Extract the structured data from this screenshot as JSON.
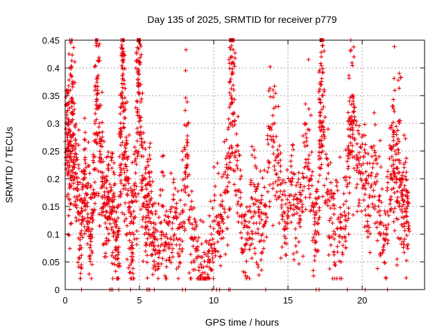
{
  "chart_data": {
    "type": "scatter",
    "title": "Day 135 of 2025, SRMTID for receiver p779",
    "xlabel": "GPS time / hours",
    "ylabel": "SRMTID / TECUs",
    "xlim": [
      0,
      24.2
    ],
    "ylim": [
      0,
      0.45
    ],
    "xticks": [
      0,
      5,
      10,
      15,
      20
    ],
    "yticks": [
      0,
      0.05,
      0.1,
      0.15,
      0.2,
      0.25,
      0.3,
      0.35,
      0.4,
      0.45
    ],
    "ytick_labels": [
      "0",
      "0.05",
      "0.1",
      "0.15",
      "0.2",
      "0.25",
      "0.3",
      "0.35",
      "0.4",
      "0.45"
    ],
    "grid": true,
    "marker": "+",
    "series_color": "#e8000b",
    "series": [
      {
        "name": "SRMTID",
        "points": [
          [
            0.05,
            0.29
          ],
          [
            0.1,
            0.32
          ],
          [
            0.15,
            0.27
          ],
          [
            0.2,
            0.3
          ],
          [
            0.25,
            0.22
          ],
          [
            0.3,
            0.19
          ],
          [
            0.35,
            0.36
          ],
          [
            0.4,
            0.34
          ],
          [
            0.45,
            0.33
          ],
          [
            0.5,
            0.28
          ],
          [
            0.55,
            0.26
          ],
          [
            0.6,
            0.24
          ],
          [
            0.7,
            0.21
          ],
          [
            0.8,
            0.18
          ],
          [
            0.9,
            0.14
          ],
          [
            1.0,
            0.09
          ],
          [
            1.1,
            0.12
          ],
          [
            1.2,
            0.16
          ],
          [
            1.3,
            0.2
          ],
          [
            1.4,
            0.22
          ],
          [
            1.5,
            0.15
          ],
          [
            1.6,
            0.11
          ],
          [
            1.7,
            0.08
          ],
          [
            1.8,
            0.13
          ],
          [
            1.9,
            0.18
          ],
          [
            2.0,
            0.24
          ],
          [
            2.1,
            0.38
          ],
          [
            2.15,
            0.36
          ],
          [
            2.2,
            0.33
          ],
          [
            2.3,
            0.3
          ],
          [
            2.4,
            0.27
          ],
          [
            2.5,
            0.2
          ],
          [
            2.6,
            0.15
          ],
          [
            2.7,
            0.12
          ],
          [
            2.8,
            0.14
          ],
          [
            2.9,
            0.16
          ],
          [
            3.0,
            0.19
          ],
          [
            3.1,
            0.18
          ],
          [
            3.2,
            0.15
          ],
          [
            3.3,
            0.12
          ],
          [
            3.4,
            0.09
          ],
          [
            3.5,
            0.07
          ],
          [
            3.6,
            0.1
          ],
          [
            3.7,
            0.22
          ],
          [
            3.75,
            0.28
          ],
          [
            3.8,
            0.35
          ],
          [
            3.85,
            0.38
          ],
          [
            3.9,
            0.41
          ],
          [
            3.95,
            0.33
          ],
          [
            4.0,
            0.26
          ],
          [
            4.1,
            0.2
          ],
          [
            4.2,
            0.17
          ],
          [
            4.3,
            0.14
          ],
          [
            4.4,
            0.1
          ],
          [
            4.5,
            0.08
          ],
          [
            4.6,
            0.12
          ],
          [
            4.7,
            0.16
          ],
          [
            4.8,
            0.25
          ],
          [
            4.85,
            0.32
          ],
          [
            4.9,
            0.38
          ],
          [
            4.95,
            0.41
          ],
          [
            5.0,
            0.37
          ],
          [
            5.1,
            0.28
          ],
          [
            5.2,
            0.2
          ],
          [
            5.3,
            0.15
          ],
          [
            5.4,
            0.11
          ],
          [
            5.5,
            0.13
          ],
          [
            5.6,
            0.17
          ],
          [
            5.7,
            0.19
          ],
          [
            5.8,
            0.14
          ],
          [
            5.9,
            0.1
          ],
          [
            6.0,
            0.07
          ],
          [
            6.2,
            0.09
          ],
          [
            6.4,
            0.12
          ],
          [
            6.6,
            0.15
          ],
          [
            6.8,
            0.1
          ],
          [
            7.0,
            0.08
          ],
          [
            7.2,
            0.11
          ],
          [
            7.4,
            0.14
          ],
          [
            7.6,
            0.09
          ],
          [
            7.8,
            0.12
          ],
          [
            8.0,
            0.18
          ],
          [
            8.1,
            0.24
          ],
          [
            8.2,
            0.27
          ],
          [
            8.4,
            0.12
          ],
          [
            8.6,
            0.09
          ],
          [
            8.8,
            0.07
          ],
          [
            9.0,
            0.06
          ],
          [
            9.2,
            0.04
          ],
          [
            9.4,
            0.03
          ],
          [
            9.6,
            0.05
          ],
          [
            9.8,
            0.08
          ],
          [
            10.0,
            0.11
          ],
          [
            10.2,
            0.13
          ],
          [
            10.4,
            0.1
          ],
          [
            10.6,
            0.15
          ],
          [
            10.8,
            0.18
          ],
          [
            11.0,
            0.22
          ],
          [
            11.1,
            0.3
          ],
          [
            11.15,
            0.38
          ],
          [
            11.2,
            0.44
          ],
          [
            11.25,
            0.45
          ],
          [
            11.3,
            0.41
          ],
          [
            11.35,
            0.36
          ],
          [
            11.5,
            0.25
          ],
          [
            11.7,
            0.18
          ],
          [
            11.9,
            0.12
          ],
          [
            12.1,
            0.08
          ],
          [
            12.3,
            0.1
          ],
          [
            12.5,
            0.14
          ],
          [
            12.7,
            0.19
          ],
          [
            12.9,
            0.16
          ],
          [
            13.1,
            0.12
          ],
          [
            13.3,
            0.1
          ],
          [
            13.5,
            0.15
          ],
          [
            13.7,
            0.22
          ],
          [
            13.9,
            0.27
          ],
          [
            14.1,
            0.3
          ],
          [
            14.3,
            0.24
          ],
          [
            14.5,
            0.19
          ],
          [
            14.7,
            0.14
          ],
          [
            14.9,
            0.12
          ],
          [
            15.1,
            0.17
          ],
          [
            15.3,
            0.2
          ],
          [
            15.5,
            0.15
          ],
          [
            15.7,
            0.12
          ],
          [
            15.9,
            0.16
          ],
          [
            16.1,
            0.22
          ],
          [
            16.3,
            0.26
          ],
          [
            16.5,
            0.2
          ],
          [
            16.7,
            0.15
          ],
          [
            16.9,
            0.1
          ],
          [
            17.0,
            0.12
          ],
          [
            17.1,
            0.22
          ],
          [
            17.15,
            0.3
          ],
          [
            17.2,
            0.37
          ],
          [
            17.25,
            0.42
          ],
          [
            17.3,
            0.35
          ],
          [
            17.4,
            0.28
          ],
          [
            17.6,
            0.2
          ],
          [
            17.8,
            0.16
          ],
          [
            18.0,
            0.12
          ],
          [
            18.2,
            0.1
          ],
          [
            18.4,
            0.13
          ],
          [
            18.6,
            0.11
          ],
          [
            18.8,
            0.14
          ],
          [
            19.0,
            0.19
          ],
          [
            19.1,
            0.25
          ],
          [
            19.2,
            0.3
          ],
          [
            19.3,
            0.35
          ],
          [
            19.4,
            0.32
          ],
          [
            19.5,
            0.27
          ],
          [
            19.7,
            0.22
          ],
          [
            19.9,
            0.2
          ],
          [
            20.1,
            0.24
          ],
          [
            20.3,
            0.2
          ],
          [
            20.5,
            0.17
          ],
          [
            20.7,
            0.22
          ],
          [
            20.9,
            0.19
          ],
          [
            21.1,
            0.15
          ],
          [
            21.3,
            0.12
          ],
          [
            21.5,
            0.09
          ],
          [
            21.7,
            0.14
          ],
          [
            21.9,
            0.2
          ],
          [
            22.0,
            0.24
          ],
          [
            22.1,
            0.28
          ],
          [
            22.2,
            0.25
          ],
          [
            22.3,
            0.2
          ],
          [
            22.4,
            0.16
          ],
          [
            22.5,
            0.3
          ],
          [
            22.6,
            0.19
          ],
          [
            22.7,
            0.15
          ],
          [
            22.8,
            0.13
          ],
          [
            22.9,
            0.17
          ],
          [
            23.0,
            0.14
          ],
          [
            23.1,
            0.12
          ]
        ]
      }
    ]
  }
}
